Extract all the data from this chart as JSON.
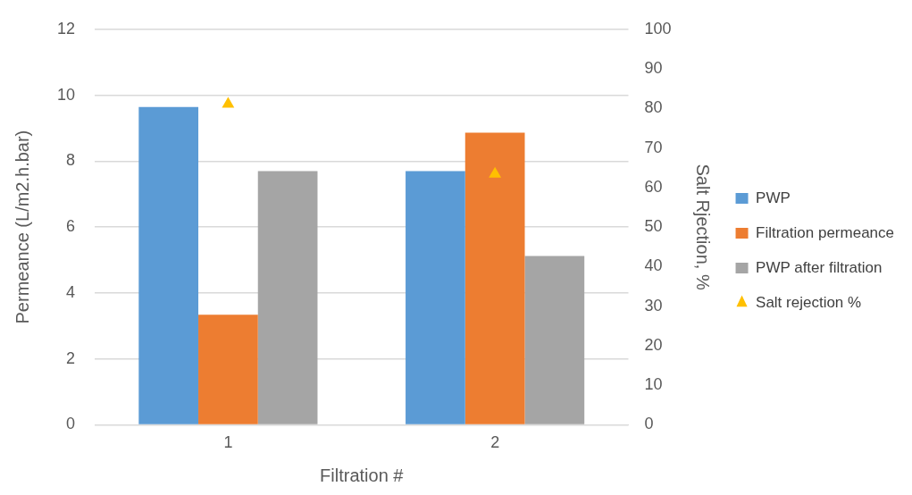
{
  "chart_data": {
    "type": "bar",
    "xlabel": "Filtration #",
    "ylabel": "Permeance (L/m2.h.bar)",
    "y2label": "Salt Rjection, %",
    "categories": [
      "1",
      "2"
    ],
    "series": [
      {
        "name": "PWP",
        "color": "#5b9bd5",
        "values": [
          9.64,
          7.7
        ]
      },
      {
        "name": "Filtration permeance",
        "color": "#ed7d31",
        "values": [
          3.34,
          8.86
        ]
      },
      {
        "name": "PWP after filtration",
        "color": "#a5a5a5",
        "values": [
          7.7,
          5.12
        ]
      },
      {
        "name": "Salt rejection %",
        "type": "scatter",
        "axis": "y2",
        "color": "#ffc000",
        "x": [
          "1",
          "2"
        ],
        "values": [
          81.1,
          63.4
        ]
      }
    ],
    "ylim": [
      0,
      12
    ],
    "yticks": [
      0,
      2,
      4,
      6,
      8,
      10,
      12
    ],
    "y2lim": [
      0,
      100
    ],
    "y2ticks": [
      0,
      10,
      20,
      30,
      40,
      50,
      60,
      70,
      80,
      90,
      100
    ],
    "grid": "y",
    "legend": "right",
    "marker": "triangle"
  }
}
